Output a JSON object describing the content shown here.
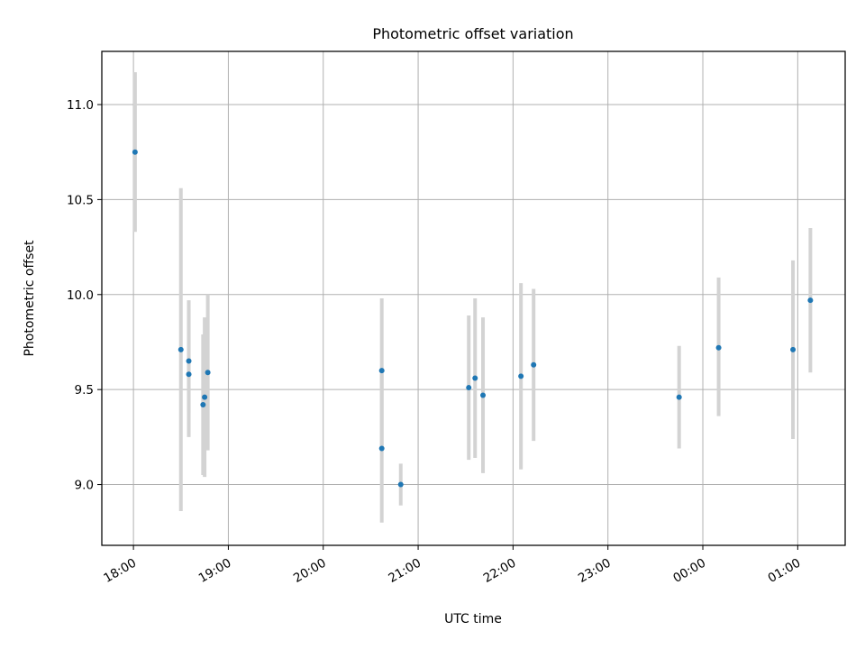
{
  "chart_data": {
    "type": "scatter",
    "title": "Photometric offset variation",
    "xlabel": "UTC time",
    "ylabel": "Photometric offset",
    "grid": true,
    "x_is_time": true,
    "xlim": [
      "17:40",
      "01:30"
    ],
    "ylim": [
      8.68,
      11.28
    ],
    "x_ticks": [
      "18:00",
      "19:00",
      "20:00",
      "21:00",
      "22:00",
      "23:00",
      "00:00",
      "01:00"
    ],
    "y_ticks": [
      "9.0",
      "9.5",
      "10.0",
      "10.5",
      "11.0"
    ],
    "y_tick_values": [
      9.0,
      9.5,
      10.0,
      10.5,
      11.0
    ],
    "point_color": "#1f77b4",
    "errorbar_color": "#d3d3d3",
    "points": [
      {
        "x": "18:01",
        "y": 10.75,
        "lo": 10.33,
        "hi": 11.17
      },
      {
        "x": "18:30",
        "y": 9.71,
        "lo": 8.86,
        "hi": 10.56
      },
      {
        "x": "18:35",
        "y": 9.65,
        "lo": 9.38,
        "hi": 9.92
      },
      {
        "x": "18:35",
        "y": 9.58,
        "lo": 9.25,
        "hi": 9.97
      },
      {
        "x": "18:44",
        "y": 9.42,
        "lo": 9.05,
        "hi": 9.79
      },
      {
        "x": "18:45",
        "y": 9.46,
        "lo": 9.04,
        "hi": 9.88
      },
      {
        "x": "18:47",
        "y": 9.59,
        "lo": 9.18,
        "hi": 10.0
      },
      {
        "x": "20:37",
        "y": 9.6,
        "lo": 9.2,
        "hi": 9.98
      },
      {
        "x": "20:37",
        "y": 9.19,
        "lo": 8.8,
        "hi": 9.58
      },
      {
        "x": "20:49",
        "y": 9.0,
        "lo": 8.89,
        "hi": 9.11
      },
      {
        "x": "21:32",
        "y": 9.51,
        "lo": 9.13,
        "hi": 9.89
      },
      {
        "x": "21:36",
        "y": 9.56,
        "lo": 9.14,
        "hi": 9.98
      },
      {
        "x": "21:41",
        "y": 9.47,
        "lo": 9.06,
        "hi": 9.88
      },
      {
        "x": "22:05",
        "y": 9.57,
        "lo": 9.08,
        "hi": 10.06
      },
      {
        "x": "22:13",
        "y": 9.63,
        "lo": 9.23,
        "hi": 10.03
      },
      {
        "x": "23:45",
        "y": 9.46,
        "lo": 9.19,
        "hi": 9.73
      },
      {
        "x": "00:10",
        "y": 9.72,
        "lo": 9.36,
        "hi": 10.09
      },
      {
        "x": "00:57",
        "y": 9.71,
        "lo": 9.24,
        "hi": 10.18
      },
      {
        "x": "01:08",
        "y": 9.97,
        "lo": 9.59,
        "hi": 10.35
      }
    ]
  }
}
